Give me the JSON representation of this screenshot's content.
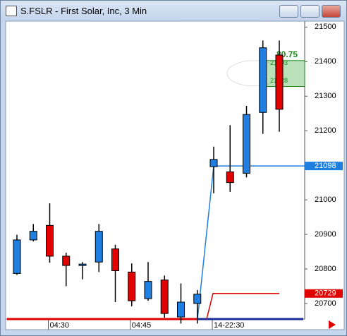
{
  "chart_data": {
    "type": "candlestick",
    "title": "S.FSLR - First Solar, Inc, 3 Min",
    "categories": [
      null,
      null,
      "04:30",
      null,
      null,
      null,
      null,
      "04:45",
      null,
      null,
      null,
      null,
      "14-22:30",
      null,
      null,
      null,
      null
    ],
    "open": [
      20787,
      20884,
      20926,
      20837,
      20812,
      20820,
      20858,
      20791,
      20714,
      20768,
      20661,
      20700,
      21096,
      21081,
      21077,
      21253,
      21419
    ],
    "high": [
      20899,
      20930,
      20990,
      20847,
      20820,
      20930,
      20870,
      20816,
      20820,
      20781,
      20758,
      20739,
      21154,
      21216,
      21272,
      21461,
      21461
    ],
    "low": [
      20783,
      20880,
      20818,
      20750,
      20770,
      20791,
      20704,
      20692,
      20708,
      20659,
      20642,
      20642,
      21019,
      21023,
      21065,
      21191,
      21197
    ],
    "close": [
      20884,
      20909,
      20837,
      20810,
      20814,
      20909,
      20795,
      20708,
      20764,
      20671,
      20704,
      20727,
      21117,
      21050,
      21247,
      21440,
      21262
    ],
    "up_color": "#1e7fe0",
    "down_color": "#e00000",
    "ylim": [
      20655,
      21517
    ],
    "yticks": [
      20700,
      20800,
      20900,
      21000,
      21100,
      21200,
      21300,
      21400,
      21500
    ],
    "markers": [
      {
        "value": 21098,
        "color": "#1e7fe0"
      },
      {
        "value": 20729,
        "color": "#e00000"
      }
    ],
    "annotation": {
      "text": "80.75",
      "upper": 21403,
      "lower": 21328,
      "color": "#1a8a1a"
    }
  }
}
